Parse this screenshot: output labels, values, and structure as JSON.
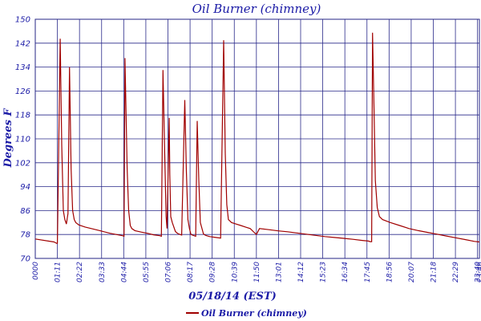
{
  "chart_data": {
    "type": "line",
    "title": "Oil Burner (chimney)",
    "xlabel": "05/18/14 (EST)",
    "ylabel": "Degrees F",
    "ylim": [
      70,
      150
    ],
    "yticks": [
      "70",
      "78",
      "86",
      "94",
      "102",
      "110",
      "118",
      "126",
      "134",
      "142",
      "150"
    ],
    "xlim": [
      "00:00",
      "23:46"
    ],
    "xticks": [
      "0000",
      "01:11",
      "02:22",
      "03:33",
      "04:44",
      "05:55",
      "07:06",
      "08:17",
      "09:28",
      "10:39",
      "11:50",
      "13:01",
      "14:12",
      "15:23",
      "16:34",
      "17:45",
      "18:56",
      "20:07",
      "21:18",
      "22:29",
      "23:40",
      "23:46"
    ],
    "grid": true,
    "legend": "bottom-center",
    "colors": {
      "series": "#a00000",
      "text": "#1a1aa6",
      "grid": "#2a2a8a"
    },
    "series": [
      {
        "name": "Oil Burner (chimney)",
        "x": [
          "00:00",
          "01:00",
          "01:10",
          "01:11",
          "01:20",
          "01:25",
          "01:30",
          "01:35",
          "01:40",
          "01:45",
          "01:50",
          "01:55",
          "02:00",
          "02:05",
          "02:10",
          "02:20",
          "02:40",
          "03:00",
          "03:30",
          "04:00",
          "04:20",
          "04:40",
          "04:45",
          "04:48",
          "04:55",
          "05:00",
          "05:05",
          "05:10",
          "05:20",
          "05:40",
          "06:00",
          "06:20",
          "06:40",
          "06:45",
          "06:50",
          "06:55",
          "07:00",
          "07:03",
          "07:10",
          "07:12",
          "07:15",
          "07:20",
          "07:30",
          "07:35",
          "07:40",
          "07:45",
          "07:50",
          "08:00",
          "08:05",
          "08:10",
          "08:15",
          "08:20",
          "08:30",
          "08:35",
          "08:40",
          "08:45",
          "08:50",
          "09:00",
          "09:05",
          "09:10",
          "09:20",
          "09:40",
          "09:55",
          "10:00",
          "10:05",
          "10:10",
          "10:15",
          "10:20",
          "10:30",
          "10:45",
          "11:00",
          "11:15",
          "11:30",
          "11:40",
          "11:50",
          "12:00",
          "12:30",
          "13:00",
          "13:30",
          "14:00",
          "14:30",
          "15:00",
          "15:30",
          "16:00",
          "16:30",
          "17:00",
          "17:30",
          "17:50",
          "17:55",
          "18:00",
          "18:03",
          "18:08",
          "18:12",
          "18:18",
          "18:25",
          "18:35",
          "19:00",
          "19:30",
          "20:00",
          "20:30",
          "21:00",
          "21:30",
          "22:00",
          "22:30",
          "23:00",
          "23:30",
          "23:46"
        ],
        "values": [
          76.5,
          75.5,
          75,
          75.2,
          143.5,
          108,
          86,
          83,
          81.5,
          85,
          134,
          100,
          86,
          83,
          82,
          81.2,
          80.5,
          80,
          79.2,
          78.4,
          78,
          77.6,
          77.4,
          137,
          100,
          86,
          81,
          80,
          79.3,
          78.8,
          78.4,
          77.9,
          77.6,
          77.4,
          133,
          108,
          84,
          80,
          117,
          98,
          84,
          82,
          79,
          78.5,
          78.2,
          78,
          77.8,
          123,
          100,
          83,
          80,
          78,
          77.6,
          77.4,
          116,
          96,
          82,
          78.2,
          77.8,
          77.6,
          77.3,
          77,
          76.8,
          110,
          143,
          105,
          88,
          83,
          82,
          81.5,
          81,
          80.5,
          80,
          79,
          78,
          80,
          79.6,
          79.2,
          78.9,
          78.5,
          78.1,
          77.7,
          77.3,
          77,
          76.7,
          76.4,
          76,
          75.8,
          75.6,
          75.6,
          145.5,
          118,
          96,
          87,
          84,
          83,
          82,
          81,
          80,
          79.3,
          78.7,
          78.1,
          77.5,
          76.9,
          76.3,
          75.7,
          75.5
        ]
      }
    ]
  }
}
